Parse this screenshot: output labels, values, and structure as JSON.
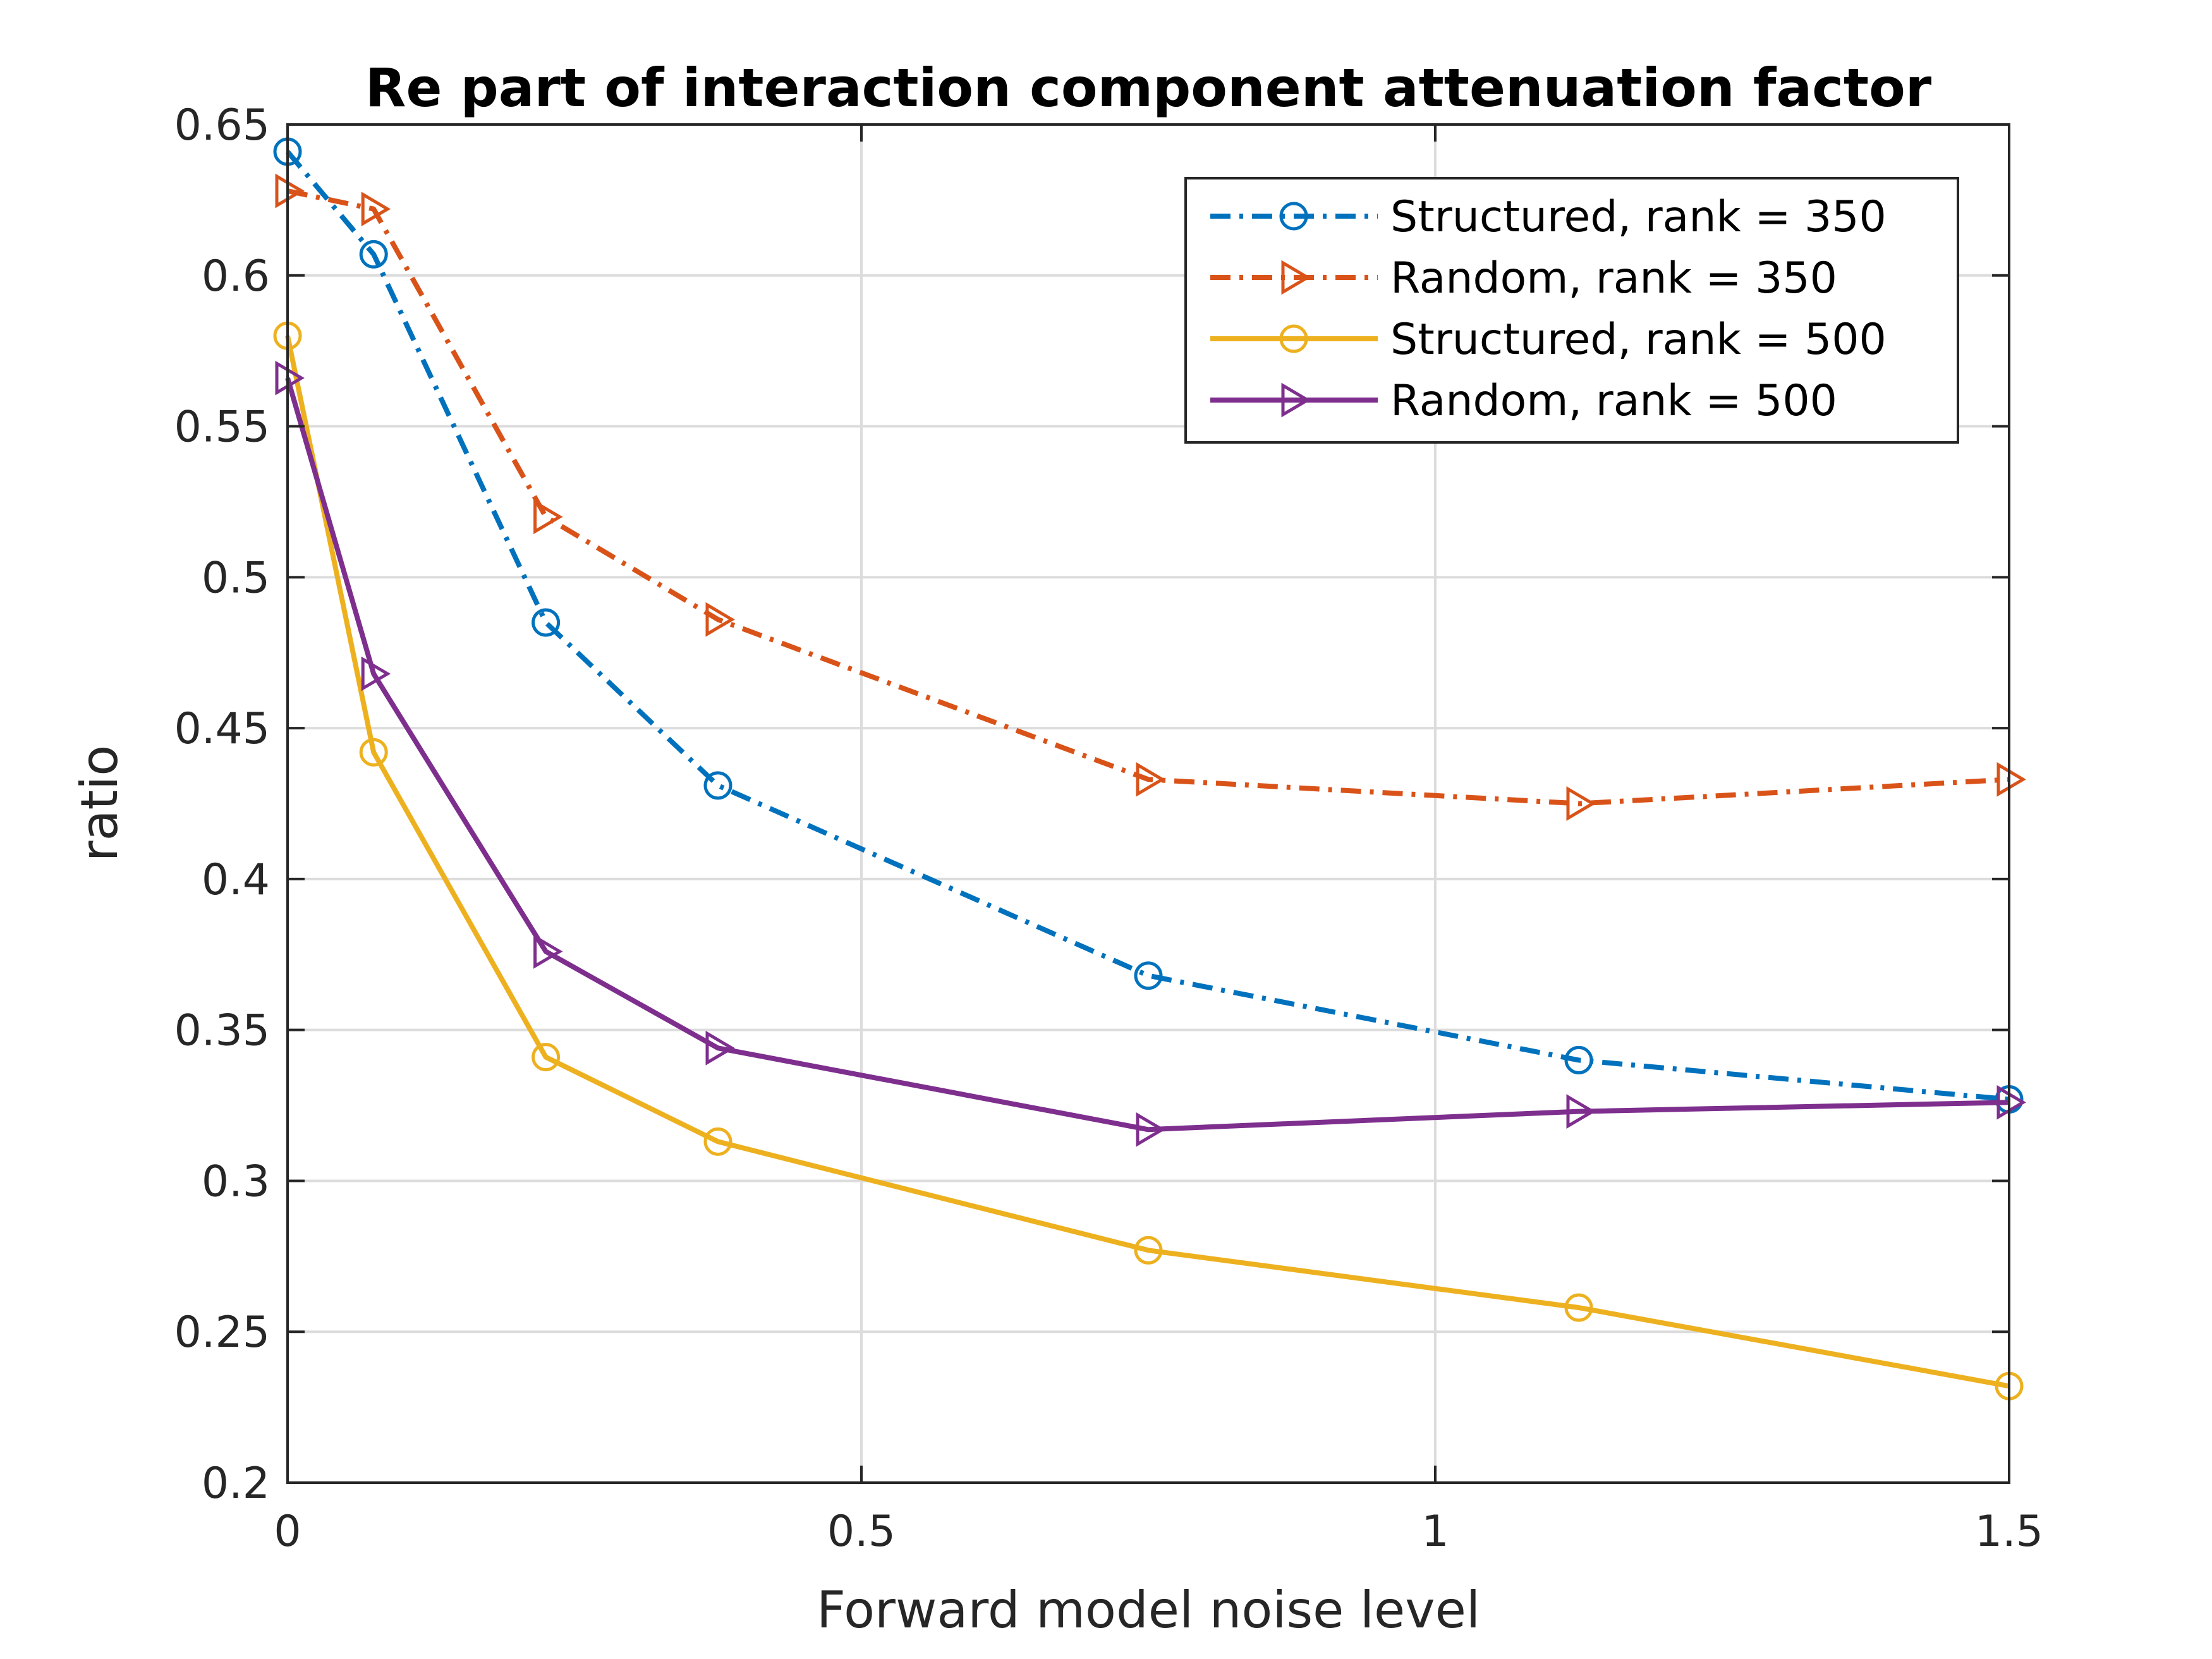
{
  "chart_data": {
    "type": "line",
    "title": "Re part of interaction component attenuation factor",
    "xlabel": "Forward model noise level",
    "ylabel": "ratio",
    "xlim": [
      0,
      1.5
    ],
    "ylim": [
      0.2,
      0.65
    ],
    "xticks": [
      0,
      0.5,
      1,
      1.5
    ],
    "xtick_labels": [
      "0",
      "0.5",
      "1",
      "1.5"
    ],
    "yticks": [
      0.2,
      0.25,
      0.3,
      0.35,
      0.4,
      0.45,
      0.5,
      0.55,
      0.6,
      0.65
    ],
    "ytick_labels": [
      "0.2",
      "0.25",
      "0.3",
      "0.35",
      "0.4",
      "0.45",
      "0.5",
      "0.55",
      "0.6",
      "0.65"
    ],
    "grid": true,
    "legend_position": "top-right",
    "x": [
      0,
      0.075,
      0.225,
      0.375,
      0.75,
      1.125,
      1.5
    ],
    "series": [
      {
        "name": "Structured, rank = 350",
        "values": [
          0.641,
          0.607,
          0.485,
          0.431,
          0.368,
          0.34,
          0.327
        ],
        "color": "#0072BD",
        "line_style": "dash-dot",
        "marker": "circle"
      },
      {
        "name": "Random, rank = 350",
        "values": [
          0.628,
          0.622,
          0.52,
          0.486,
          0.433,
          0.425,
          0.433
        ],
        "color": "#D95319",
        "line_style": "dash-dot",
        "marker": "triangle-right"
      },
      {
        "name": "Structured, rank = 500",
        "values": [
          0.58,
          0.442,
          0.341,
          0.313,
          0.277,
          0.258,
          0.232
        ],
        "color": "#EDB120",
        "line_style": "solid",
        "marker": "circle"
      },
      {
        "name": "Random, rank = 500",
        "values": [
          0.566,
          0.468,
          0.376,
          0.344,
          0.317,
          0.323,
          0.326
        ],
        "color": "#7E2F8E",
        "line_style": "solid",
        "marker": "triangle-right"
      }
    ]
  }
}
